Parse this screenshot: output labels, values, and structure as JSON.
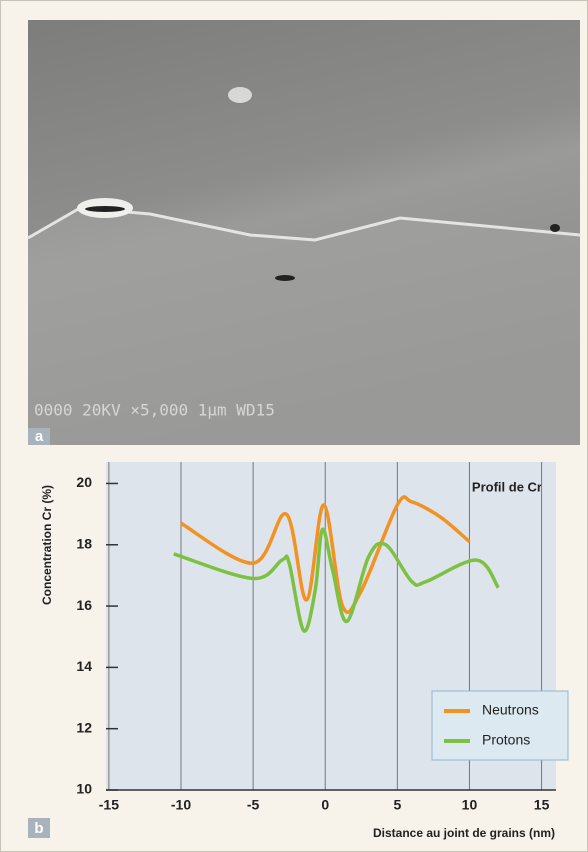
{
  "image": {
    "panel_label": "a",
    "caption": "0000  20KV   ×5,000   1µm  WD15"
  },
  "chart_data": {
    "type": "line",
    "panel_label": "b",
    "title": "Profil de Cr",
    "x_label": "Distance au joint de grains (nm)",
    "y_label": "Concentration Cr (%)",
    "xlim": [
      -15.2,
      16
    ],
    "xticks": [
      -15,
      -10,
      -5,
      0,
      5,
      10,
      15
    ],
    "ylim": [
      10,
      20.7
    ],
    "yticks": [
      10,
      12,
      14,
      16,
      18,
      20
    ],
    "grid": true,
    "legend": "lower-right",
    "series": [
      {
        "name": "Neutrons",
        "color": "#f29222",
        "x": [
          -10,
          -5,
          -2.7,
          -1.3,
          -0.1,
          1.2,
          2.5,
          5,
          6,
          8,
          10
        ],
        "values": [
          18.7,
          17.4,
          19.0,
          16.2,
          19.3,
          16.0,
          16.5,
          19.3,
          19.4,
          18.9,
          18.1
        ]
      },
      {
        "name": "Protons",
        "color": "#7dc142",
        "x": [
          -10.5,
          -5,
          -3,
          -2.5,
          -1.5,
          -0.7,
          -0.2,
          0.5,
          1.5,
          3,
          4.2,
          6,
          7,
          10.5,
          12
        ],
        "values": [
          17.7,
          16.9,
          17.5,
          17.4,
          15.2,
          16.5,
          18.5,
          17.2,
          15.5,
          17.6,
          18.0,
          16.8,
          16.8,
          17.5,
          16.6
        ]
      }
    ]
  }
}
